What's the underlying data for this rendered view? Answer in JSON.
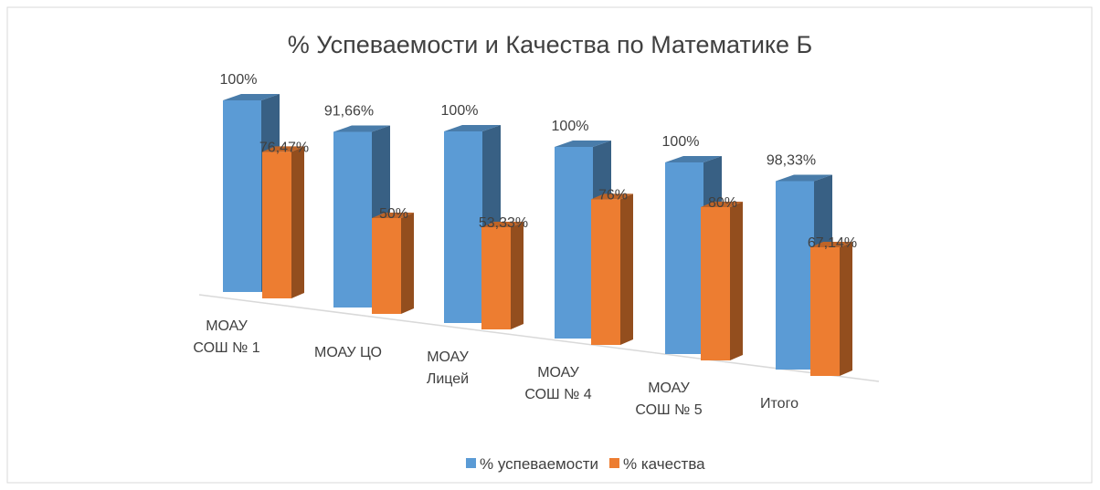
{
  "chart_data": {
    "type": "bar3d",
    "title": "% Успеваемости и Качества по Математике Б",
    "categories": [
      "МОАУ СОШ № 1",
      "МОАУ ЦО",
      "МОАУ Лицей",
      "МОАУ СОШ № 4",
      "МОАУ СОШ № 5",
      "Итого"
    ],
    "series": [
      {
        "name": "% успеваемости",
        "color": "#5b9bd5",
        "values": [
          100,
          91.66,
          100,
          100,
          100,
          98.33
        ],
        "value_labels": [
          "100%",
          "91,66%",
          "100%",
          "100%",
          "100%",
          "98,33%"
        ]
      },
      {
        "name": "% качества",
        "color": "#ed7d31",
        "values": [
          76.47,
          50,
          53.33,
          76,
          80,
          67.14
        ],
        "value_labels": [
          "76,47%",
          "50%",
          "53,33%",
          "76%",
          "80%",
          "67,14%"
        ]
      }
    ]
  }
}
